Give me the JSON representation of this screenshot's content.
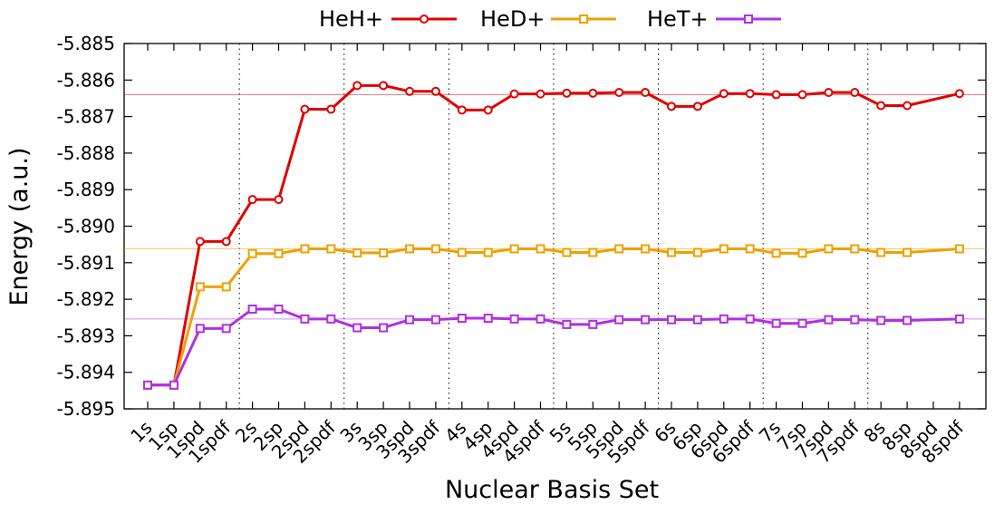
{
  "chart_data": {
    "type": "line",
    "xlabel": "Nuclear Basis Set",
    "ylabel": "Energy (a.u.)",
    "ylim": [
      -5.895,
      -5.885
    ],
    "yticks": [
      "-5.885",
      "-5.886",
      "-5.887",
      "-5.888",
      "-5.889",
      "-5.890",
      "-5.891",
      "-5.892",
      "-5.893",
      "-5.894",
      "-5.895"
    ],
    "categories": [
      "1s",
      "1sp",
      "1spd",
      "1spdf",
      "2s",
      "2sp",
      "2spd",
      "2spdf",
      "3s",
      "3sp",
      "3spd",
      "3spdf",
      "4s",
      "4sp",
      "4spd",
      "4spdf",
      "5s",
      "5sp",
      "5spd",
      "5spdf",
      "6s",
      "6sp",
      "6spd",
      "6spdf",
      "7s",
      "7sp",
      "7spd",
      "7spdf",
      "8s",
      "8sp",
      "8spd",
      "8spdf"
    ],
    "group_separators_after": [
      "1spdf",
      "2spdf",
      "3spdf",
      "4spdf",
      "5spdf",
      "6spdf",
      "7spdf"
    ],
    "legend_position": "top",
    "grid": false,
    "series": [
      {
        "name": "HeH+",
        "color": "#e00000",
        "marker": "circle",
        "values": [
          -5.89435,
          -5.89435,
          -5.89042,
          -5.89042,
          -5.88927,
          -5.88927,
          -5.8868,
          -5.8868,
          -5.88615,
          -5.88615,
          -5.88631,
          -5.88631,
          -5.88682,
          -5.88682,
          -5.88638,
          -5.88638,
          -5.88636,
          -5.88636,
          -5.88634,
          -5.88634,
          -5.88672,
          -5.88672,
          -5.88637,
          -5.88637,
          -5.8864,
          -5.8864,
          -5.88634,
          -5.88634,
          -5.8867,
          -5.8867,
          null,
          -5.88637
        ],
        "reference": -5.8864
      },
      {
        "name": "HeD+",
        "color": "#f0a000",
        "marker": "square",
        "values": [
          -5.89435,
          -5.89435,
          -5.89166,
          -5.89166,
          -5.89075,
          -5.89075,
          -5.89062,
          -5.89062,
          -5.89073,
          -5.89073,
          -5.89062,
          -5.89062,
          -5.89072,
          -5.89072,
          -5.89062,
          -5.89062,
          -5.89072,
          -5.89072,
          -5.89062,
          -5.89062,
          -5.89072,
          -5.89072,
          -5.89062,
          -5.89062,
          -5.89074,
          -5.89074,
          -5.89062,
          -5.89062,
          -5.89072,
          -5.89072,
          null,
          -5.89062
        ],
        "reference": -5.89062
      },
      {
        "name": "HeT+",
        "color": "#b030e0",
        "marker": "square",
        "values": [
          -5.89435,
          -5.89435,
          -5.8928,
          -5.8928,
          -5.89227,
          -5.89227,
          -5.89254,
          -5.89254,
          -5.89278,
          -5.89278,
          -5.89256,
          -5.89256,
          -5.89252,
          -5.89252,
          -5.89254,
          -5.89254,
          -5.89269,
          -5.89269,
          -5.89256,
          -5.89256,
          -5.89256,
          -5.89256,
          -5.89254,
          -5.89254,
          -5.89266,
          -5.89266,
          -5.89256,
          -5.89256,
          -5.89258,
          -5.89258,
          null,
          -5.89254
        ],
        "reference": -5.89254
      }
    ]
  }
}
